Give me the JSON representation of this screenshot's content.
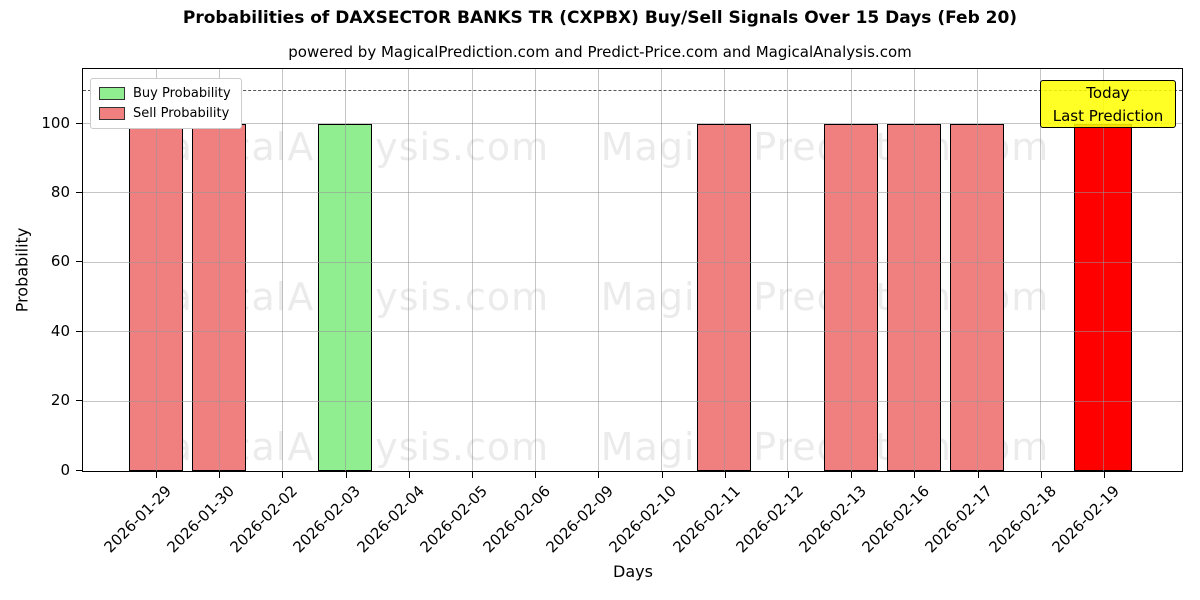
{
  "title": "Probabilities of DAXSECTOR BANKS TR (CXPBX) Buy/Sell Signals Over 15 Days (Feb 20)",
  "subtitle": "powered by MagicalPrediction.com and Predict-Price.com and MagicalAnalysis.com",
  "watermarks": {
    "left": "MagicalAnalysis.com",
    "right": "MagicalPrediction.com"
  },
  "legend": [
    {
      "label": "Buy Probability",
      "color": "#90EE90"
    },
    {
      "label": "Sell Probability",
      "color": "#F08080"
    }
  ],
  "annotation": {
    "lines": [
      "Today",
      "Last Prediction"
    ],
    "bg_color": "#FFFF00",
    "bg_alpha": 0.85,
    "border_color": "#000000"
  },
  "chart_data": {
    "type": "bar",
    "title": "Probabilities of DAXSECTOR BANKS TR (CXPBX) Buy/Sell Signals Over 15 Days (Feb 20)",
    "subtitle": "powered by MagicalPrediction.com and Predict-Price.com and MagicalAnalysis.com",
    "xlabel": "Days",
    "ylabel": "Probability",
    "ylim": [
      0,
      116
    ],
    "yticks": [
      0,
      20,
      40,
      60,
      80,
      100
    ],
    "grid": true,
    "legend_position": "upper left",
    "dashed_hline": 110,
    "categories": [
      "2026-01-29",
      "2026-01-30",
      "2026-02-02",
      "2026-02-03",
      "2026-02-04",
      "2026-02-05",
      "2026-02-06",
      "2026-02-09",
      "2026-02-10",
      "2026-02-11",
      "2026-02-12",
      "2026-02-13",
      "2026-02-16",
      "2026-02-17",
      "2026-02-18",
      "2026-02-19"
    ],
    "series": [
      {
        "name": "Buy Probability",
        "color": "#90EE90",
        "values": [
          0,
          0,
          0,
          100,
          0,
          0,
          0,
          0,
          0,
          0,
          0,
          0,
          0,
          0,
          0,
          0
        ]
      },
      {
        "name": "Sell Probability",
        "color": "#F08080",
        "values": [
          100,
          100,
          0,
          0,
          0,
          0,
          0,
          0,
          0,
          100,
          0,
          100,
          100,
          100,
          0,
          100
        ]
      }
    ],
    "today_index": 15,
    "today_color": "#FF0000",
    "bar_edge_color": "#000000"
  }
}
